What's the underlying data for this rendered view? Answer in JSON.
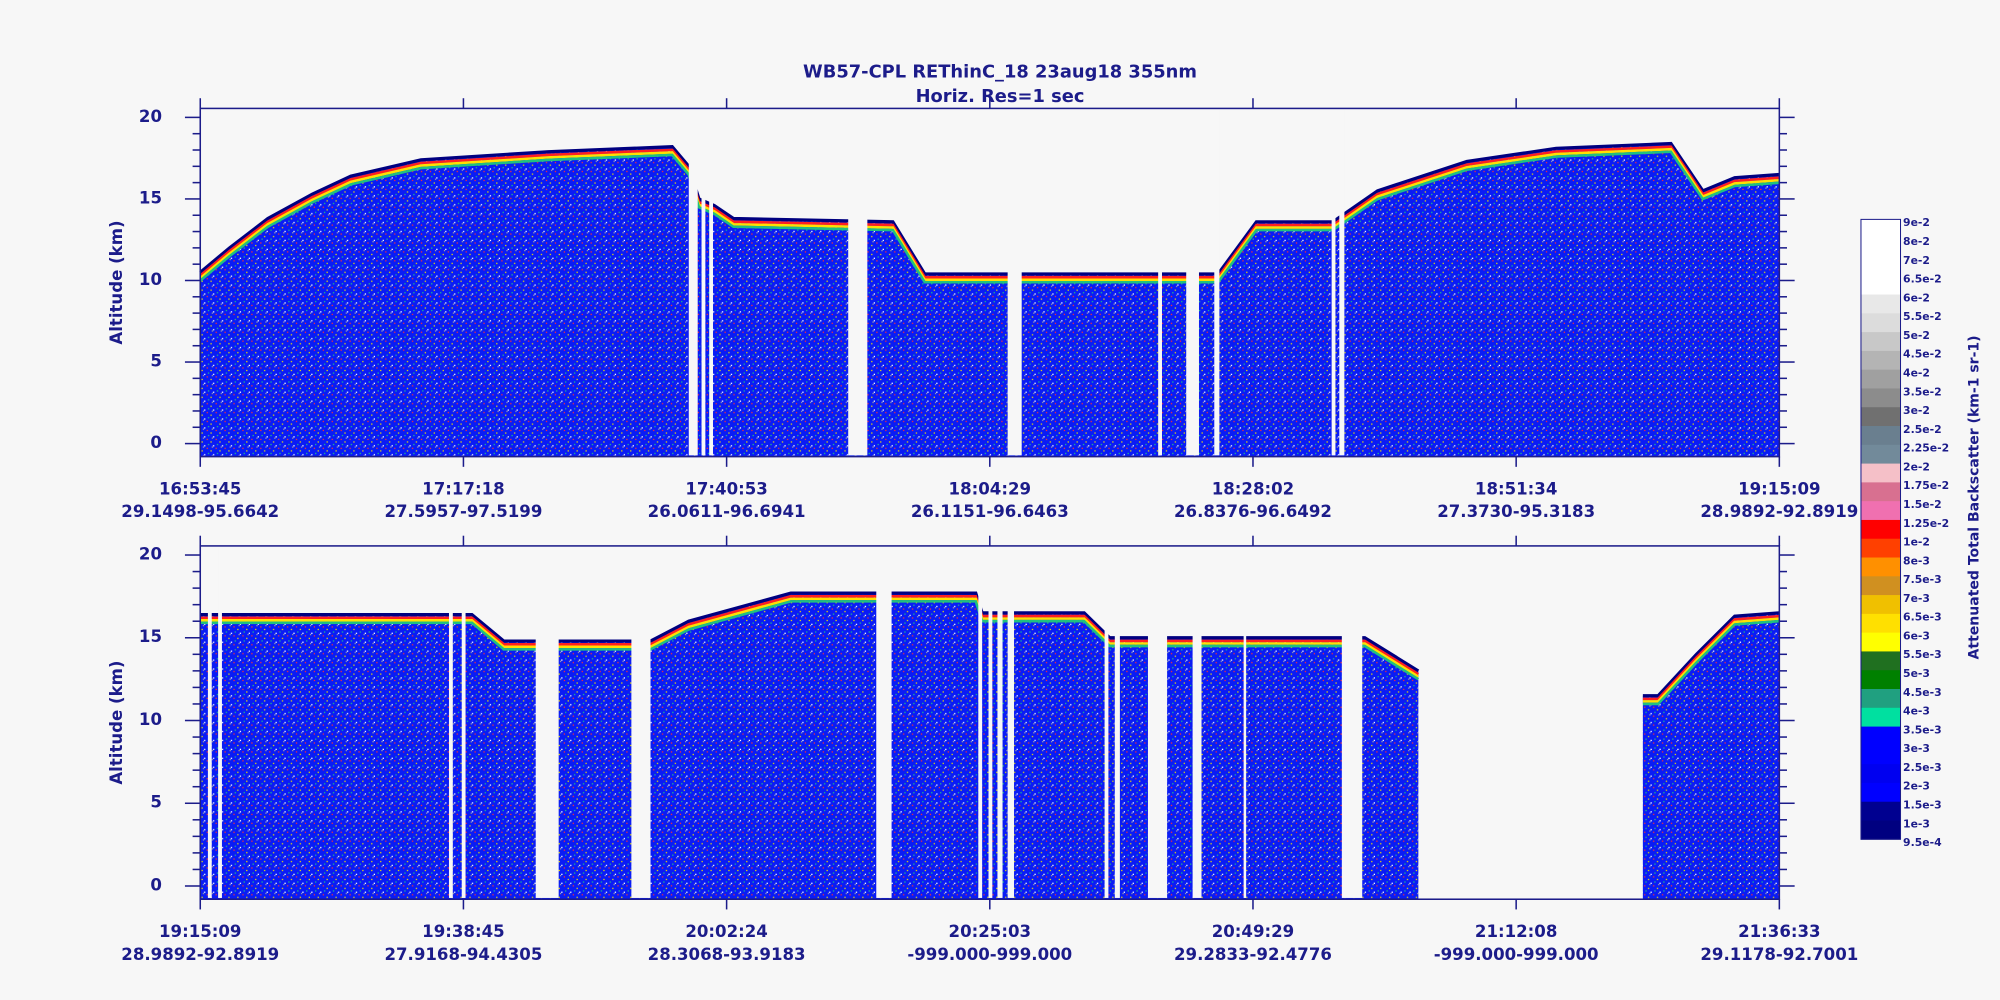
{
  "chart_data": [
    {
      "type": "heatmap",
      "title": "WB57-CPL  REThinC_18  23aug18  355nm",
      "subtitle": "Horiz. Res=1 sec",
      "y_label": "Altitude (km)",
      "ylim": [
        -0.8,
        20.55
      ],
      "yticks": [
        0,
        5,
        10,
        15,
        20
      ],
      "xticks": [
        {
          "time": "16:53:45",
          "coords": "29.1498-95.6642"
        },
        {
          "time": "17:17:18",
          "coords": "27.5957-97.5199"
        },
        {
          "time": "17:40:53",
          "coords": "26.0611-96.6941"
        },
        {
          "time": "18:04:29",
          "coords": "26.1151-96.6463"
        },
        {
          "time": "18:28:02",
          "coords": "26.8376-96.6492"
        },
        {
          "time": "18:51:34",
          "coords": "27.3730-95.3183"
        },
        {
          "time": "19:15:09",
          "coords": "28.9892-92.8919"
        }
      ]
    },
    {
      "type": "heatmap",
      "y_label": "Altitude (km)",
      "ylim": [
        -0.8,
        20.55
      ],
      "yticks": [
        0,
        5,
        10,
        15,
        20
      ],
      "xticks": [
        {
          "time": "19:15:09",
          "coords": "28.9892-92.8919"
        },
        {
          "time": "19:38:45",
          "coords": "27.9168-94.4305"
        },
        {
          "time": "20:02:24",
          "coords": "28.3068-93.9183"
        },
        {
          "time": "20:25:03",
          "coords": "-999.000-999.000"
        },
        {
          "time": "20:49:29",
          "coords": "29.2833-92.4776"
        },
        {
          "time": "21:12:08",
          "coords": "-999.000-999.000"
        },
        {
          "time": "21:36:33",
          "coords": "29.1178-92.7001"
        }
      ]
    }
  ],
  "colorbar": {
    "title": "Attenuated Total Backscatter (km-1 sr-1)",
    "labels": [
      "9e-2",
      "8e-2",
      "7e-2",
      "6.5e-2",
      "6e-2",
      "5.5e-2",
      "5e-2",
      "4.5e-2",
      "4e-2",
      "3.5e-2",
      "3e-2",
      "2.5e-2",
      "2.25e-2",
      "2e-2",
      "1.75e-2",
      "1.5e-2",
      "1.25e-2",
      "1e-2",
      "8e-3",
      "7.5e-3",
      "7e-3",
      "6.5e-3",
      "6e-3",
      "5.5e-3",
      "5e-3",
      "4.5e-3",
      "4e-3",
      "3.5e-3",
      "3e-3",
      "2.5e-3",
      "2e-3",
      "1.5e-3",
      "1e-3",
      "9.5e-4"
    ],
    "colors": [
      "#ffffff",
      "#ffffff",
      "#ffffff",
      "#ffffff",
      "#e8e8e8",
      "#dcdcdc",
      "#c8c8c8",
      "#b4b4b4",
      "#a0a0a0",
      "#8c8c8c",
      "#707070",
      "#6a7f8f",
      "#728a9a",
      "#f5c0c8",
      "#d87090",
      "#f070b0",
      "#ff0000",
      "#ff4000",
      "#ff9000",
      "#d09020",
      "#f0c000",
      "#ffe000",
      "#ffff00",
      "#207020",
      "#008000",
      "#20a080",
      "#00e0a0",
      "#0000ff",
      "#0000ff",
      "#0000f0",
      "#0000ff",
      "#000090",
      "#000080"
    ]
  }
}
